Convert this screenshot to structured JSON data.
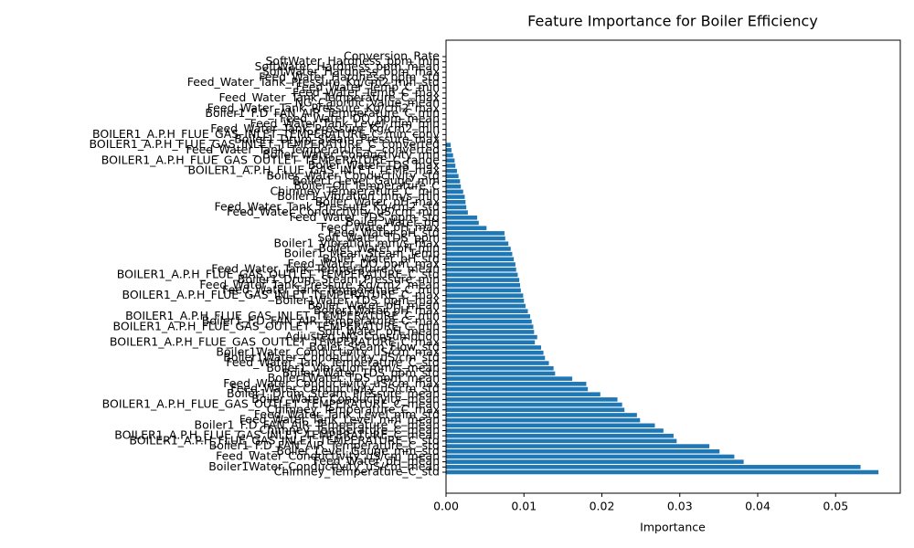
{
  "chart_data": {
    "type": "barh",
    "title": "Feature Importance for Boiler Efficiency",
    "x_label": "Importance",
    "color": "#1f77b4",
    "xlim": [
      0,
      0.0583
    ],
    "xticks": [
      {
        "value": 0,
        "label": "0.00"
      },
      {
        "value": 0.01,
        "label": "0.01"
      },
      {
        "value": 0.02,
        "label": "0.02"
      },
      {
        "value": 0.03,
        "label": "0.03"
      },
      {
        "value": 0.04,
        "label": "0.04"
      },
      {
        "value": 0.05,
        "label": "0.05"
      }
    ],
    "categories": [
      "Chimney_Temperature_C_std",
      "Boiler1Water_Conductivity_uS/cm_mean",
      "Feed_Water_pH_mean",
      "Feed_Water_Conductivity_uS/cm_mean",
      "Boiler_Level_Gauge_mm_std",
      "Boiler1_F.D_FAN_AIR_Temperature_C_std",
      "BOILER1_A.P.H_FLUE_GAS_INLET_TEMPERATURE_C_std",
      "BOILER1_A.P.H_FLUE_GAS_INLET_TEMPERATURE_C_mean",
      "Chimney_Temperature_C_mean",
      "Boiler1_F.D_FAN_AIR_Temperature_C_mean",
      "Feed_Water_Tank_Level_mm_mean",
      "Feed_Water_Tank_Level_mm_std",
      "Chimney_Temperature_C_max",
      "BOILER1_A.P.H_FLUE_GAS_OUTLET_TEMPERATURE_C_mean",
      "Boiler_Water_Conductivity_mean",
      "Boiler1_Drum_Steam_Pressure_mean",
      "Feed_Water_Conductivity_uS/cm_std",
      "Feed_Water_Conductivity_uS/cm_max",
      "Boiler1Water_TDS_ppm_mean",
      "Boiler1Water_TDS_ppm_std",
      "Boiler1_Vibration_mm/s_mean",
      "Feed_Water_Tank_Temperature_C_std",
      "Boiler1Water_Conductivity_uS/cm_std",
      "Boiler1Water_Conductivity_uS/cm_max",
      "Boiler_Steam_Flow_std",
      "BOILER1_A.P.H_FLUE_GAS_OUTLET_TEMPERATURE_C_max",
      "Adjusted_NG_Consumption",
      "Soft_Water_pH_mean",
      "BOILER1_A.P.H_FLUE_GAS_OUTLET_TEMPERATURE_C_min",
      "Boiler1_F.D_FAN_AIR_Temperature_C_max",
      "BOILER1_A.P.H_FLUE_GAS_INLET_TEMPERATURE_C_min",
      "Boiler1Water_pH_max",
      "Boiler_Water_pH_mean",
      "Boiler1Water_TDS_ppm_max",
      "BOILER1_A.P.H_FLUE_GAS_INLET_TEMPERATURE_C_max",
      "Feed_Water_Tank_Temperature_C_min",
      "Feed_Water_Tank_Pressure_Kg/cm2_mean",
      "Boiler1_Drum_Steam_Pressure_min",
      "BOILER1_A.P.H_FLUE_GAS_OUTLET_TEMPERATURE_C_std",
      "Feed_Water_Tank_Temperature_C_mean",
      "Feed_Water_DO_ppm_max",
      "Boiler_Water_pH_std",
      "Boiler1_Mean_Steam_Temp",
      "Boiler_Water_pH_min",
      "Boiler1_Vibration_mm/s_max",
      "Soft_Water_TDS_ppm",
      "Feed_Water_pH_std",
      "Feed_Water_pH_max",
      "Boiler_Water_pH",
      "Feed_Water_TDS_ppm_std",
      "Feed_Water_Conductivity_uS/cm_min",
      "Feed_Water_Tank_Pressure_Kg/cm2_std",
      "Boiler_Water_pH_max",
      "Boiler1_Vibration_mm/s_min",
      "Chimney_Temperature_C_min",
      "Boiler_Oil_Temperature_C",
      "Boiler1_Level_Gauge_mm",
      "Boiler_Water_Conductivity_std",
      "BOILER1_A.P.H_FLUE_GAS_INLET_TEMP_max",
      "Boiler_Water_TDS_max",
      "BOILER1_A.P.H_FLUE_GAS_OUTLET_TEMPERATURE_C_range",
      "Boiler_Water_Conductivity_min",
      "Feed_Water_Tank_Temperature_C_converted",
      "BOILER1_A.P.H_FLUE_GAS_INLET_TEMPERATURE_C_converted",
      "Boiler1_Drum_Steam_Pressure_max",
      "BOILER1_A.P.H_FLUE_GAS_INLET_TEMPERATURE_C_min_conv",
      "Feed_Water_Tank_Pressure_Kg/cm2_min",
      "Feed_Water_Tank_Level_mm_min",
      "Feed_Water_DO_ppm_mean",
      "Boiler1_F.D_FAN_AIR_Temperature_C_min",
      "Feed_Water_Tank_Pressure_Kg/cm2_max",
      "NG_Calorific_Value_mean",
      "Feed_Water_Tank_Temperature_C_max",
      "Feed_Water_Temp_C_max",
      "Feed_Water_Temp_C_min",
      "Feed_Water_Tank_Pressure_Kg/cm2_min_std",
      "Feed_Water_Hardness_ppm_std",
      "SoftWater_Hardness_ppm_max",
      "SoftWater_Hardness_ppm_mean",
      "SoftWater_Hardness_ppm_min",
      "Conversion_Rate"
    ],
    "values": [
      0.0555,
      0.0532,
      0.0382,
      0.037,
      0.0351,
      0.0338,
      0.0296,
      0.0292,
      0.0279,
      0.0268,
      0.0249,
      0.0245,
      0.0229,
      0.0226,
      0.022,
      0.0198,
      0.0182,
      0.018,
      0.0162,
      0.014,
      0.0138,
      0.0132,
      0.0127,
      0.0125,
      0.0122,
      0.0114,
      0.0117,
      0.0113,
      0.0112,
      0.011,
      0.0108,
      0.0105,
      0.0102,
      0.01,
      0.0099,
      0.0096,
      0.0095,
      0.0094,
      0.0092,
      0.009,
      0.0089,
      0.0087,
      0.0085,
      0.0083,
      0.008,
      0.0076,
      0.0075,
      0.0052,
      0.0042,
      0.004,
      0.0028,
      0.0026,
      0.0025,
      0.0024,
      0.0022,
      0.0019,
      0.0018,
      0.0016,
      0.0014,
      0.0012,
      0.0011,
      0.0009,
      0.0007,
      0.0006,
      0,
      0,
      0,
      0,
      0,
      0,
      0,
      0,
      0,
      0,
      0,
      0,
      0,
      0,
      0,
      0,
      0
    ]
  }
}
